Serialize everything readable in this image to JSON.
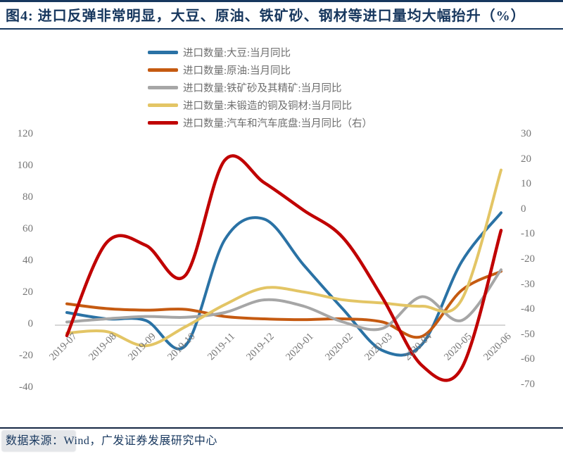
{
  "title": "图4: 进口反弹非常明显，大豆、原油、铁矿砂、钢材等进口量均大幅抬升（%）",
  "source": "数据来源：Wind，广发证券发展研究中心",
  "watermark": "",
  "colors": {
    "title_text": "#17375e",
    "source_text": "#17375e",
    "axis_text": "#767676",
    "legend_text": "#6e6e6e",
    "zero_line": "#c9c9c9",
    "rule": "#17375e"
  },
  "chart_data": {
    "type": "line",
    "categories": [
      "2019-07",
      "2019-08",
      "2019-09",
      "2019-10",
      "2019-11",
      "2019-12",
      "2020-01",
      "2020-02",
      "2020-03",
      "2020-04",
      "2020-05",
      "2020-06"
    ],
    "series": [
      {
        "key": "soybean",
        "name": "进口数量:大豆:当月同比",
        "axis": "left",
        "color": "#2a72a5",
        "values": [
          8,
          4,
          3,
          -13,
          54,
          67,
          38,
          10,
          -16,
          -12,
          40,
          71
        ]
      },
      {
        "key": "crude-oil",
        "name": "进口数量:原油:当月同比",
        "axis": "left",
        "color": "#c55a11",
        "values": [
          13.5,
          10.5,
          9.5,
          10,
          5.5,
          4,
          3.5,
          4,
          2,
          -7,
          22,
          34
        ]
      },
      {
        "key": "iron-ore",
        "name": "进口数量:铁矿砂及其精矿:当月同比",
        "axis": "left",
        "color": "#a6a6a6",
        "values": [
          2,
          4,
          5.5,
          5,
          8,
          16,
          12,
          2,
          -2,
          18,
          3,
          35
        ]
      },
      {
        "key": "copper",
        "name": "进口数量:未锻造的铜及铜材:当月同比",
        "axis": "left",
        "color": "#e3c565",
        "values": [
          -5,
          -4,
          -13,
          -1,
          13,
          23.5,
          21,
          16,
          14,
          12,
          16,
          98
        ]
      },
      {
        "key": "auto",
        "name": "进口数量:汽车和汽车底盘:当月同比（右）",
        "axis": "right",
        "color": "#c00000",
        "values": [
          -50,
          -13,
          -14,
          -26,
          20,
          11,
          0,
          -11,
          -35,
          -62,
          -63,
          -8
        ]
      }
    ],
    "left_axis": {
      "ticks": [
        120,
        100,
        80,
        60,
        40,
        20,
        0,
        -20,
        -40
      ],
      "range": [
        120,
        -40
      ]
    },
    "right_axis": {
      "ticks": [
        30,
        20,
        10,
        0,
        -10,
        -20,
        -30,
        -40,
        -50,
        -60,
        -70
      ],
      "range": [
        30,
        -70
      ]
    },
    "grid": "zero-line-only",
    "legend_position": "top-left-inset"
  }
}
